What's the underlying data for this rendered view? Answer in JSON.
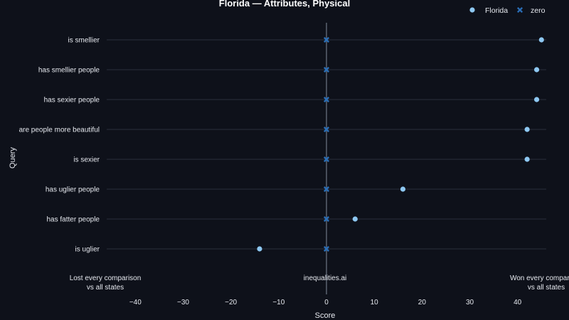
{
  "chart_data": {
    "type": "scatter",
    "title": "Florida — Attributes, Physical",
    "xlabel": "Score",
    "ylabel": "Query",
    "xlim": [
      -46,
      46
    ],
    "xticks": [
      -40,
      -30,
      -20,
      -10,
      0,
      10,
      20,
      30,
      40
    ],
    "categories": [
      "is smellier",
      "has smellier people",
      "has sexier people",
      "are people more beautiful",
      "is sexier",
      "has uglier people",
      "has fatter people",
      "is uglier"
    ],
    "series": [
      {
        "name": "Florida",
        "marker": "circle",
        "color": "#8ec8f2",
        "values": [
          45,
          44,
          44,
          42,
          42,
          16,
          6,
          -14
        ]
      },
      {
        "name": "zero",
        "marker": "x",
        "color": "#2a6db5",
        "values": [
          0,
          0,
          0,
          0,
          0,
          0,
          0,
          0
        ]
      }
    ],
    "legend_position": "top-right",
    "grid": "horizontal",
    "annotations": {
      "left": [
        "Lost every comparison",
        "vs all states"
      ],
      "center": "inequalities.ai",
      "right": [
        "Won every comparison",
        "vs all states"
      ]
    },
    "colors": {
      "background": "#0e111a",
      "gridline": "#2a303c",
      "zero_line": "#5a6270",
      "text": "#e6e9ef"
    }
  }
}
